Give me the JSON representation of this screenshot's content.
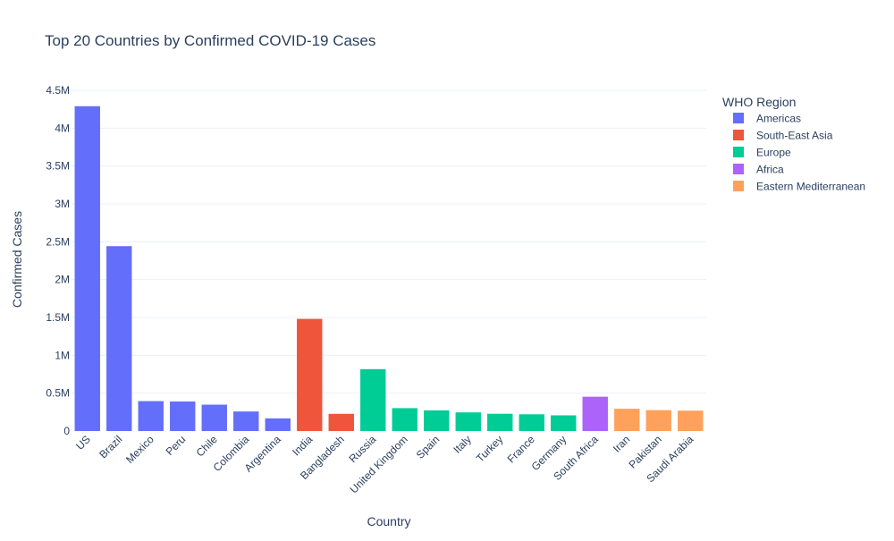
{
  "colors": {
    "Americas": "#636efa",
    "South-East Asia": "#ef553b",
    "Europe": "#00cc96",
    "Africa": "#ab63fa",
    "Eastern Mediterranean": "#ffa15a",
    "grid": "#ebf0f8",
    "text": "#2a3f5f",
    "axis_text": "#2a3f5f"
  },
  "chart_data": {
    "type": "bar",
    "title": "Top 20 Countries by Confirmed COVID-19 Cases",
    "xlabel": "Country",
    "ylabel": "Confirmed Cases",
    "ylim": [
      0,
      4500000
    ],
    "yticks": [
      0,
      500000,
      1000000,
      1500000,
      2000000,
      2500000,
      3000000,
      3500000,
      4000000,
      4500000
    ],
    "ytick_labels": [
      "0",
      "0.5M",
      "1M",
      "1.5M",
      "2M",
      "2.5M",
      "3M",
      "3.5M",
      "4M",
      "4.5M"
    ],
    "grid": true,
    "legend": {
      "title": "WHO Region",
      "placement": "top-right",
      "entries": [
        "Americas",
        "South-East Asia",
        "Europe",
        "Africa",
        "Eastern Mediterranean"
      ]
    },
    "categories": [
      "US",
      "Brazil",
      "Mexico",
      "Peru",
      "Chile",
      "Colombia",
      "Argentina",
      "India",
      "Bangladesh",
      "Russia",
      "United Kingdom",
      "Spain",
      "Italy",
      "Turkey",
      "France",
      "Germany",
      "South Africa",
      "Iran",
      "Pakistan",
      "Saudi Arabia"
    ],
    "values": [
      4290000,
      2442000,
      395000,
      390000,
      348000,
      258000,
      167000,
      1481000,
      227000,
      817000,
      302000,
      273000,
      246000,
      228000,
      221000,
      207000,
      453000,
      294000,
      276000,
      269000
    ],
    "regions": [
      "Americas",
      "Americas",
      "Americas",
      "Americas",
      "Americas",
      "Americas",
      "Americas",
      "South-East Asia",
      "South-East Asia",
      "Europe",
      "Europe",
      "Europe",
      "Europe",
      "Europe",
      "Europe",
      "Europe",
      "Africa",
      "Eastern Mediterranean",
      "Eastern Mediterranean",
      "Eastern Mediterranean"
    ]
  }
}
